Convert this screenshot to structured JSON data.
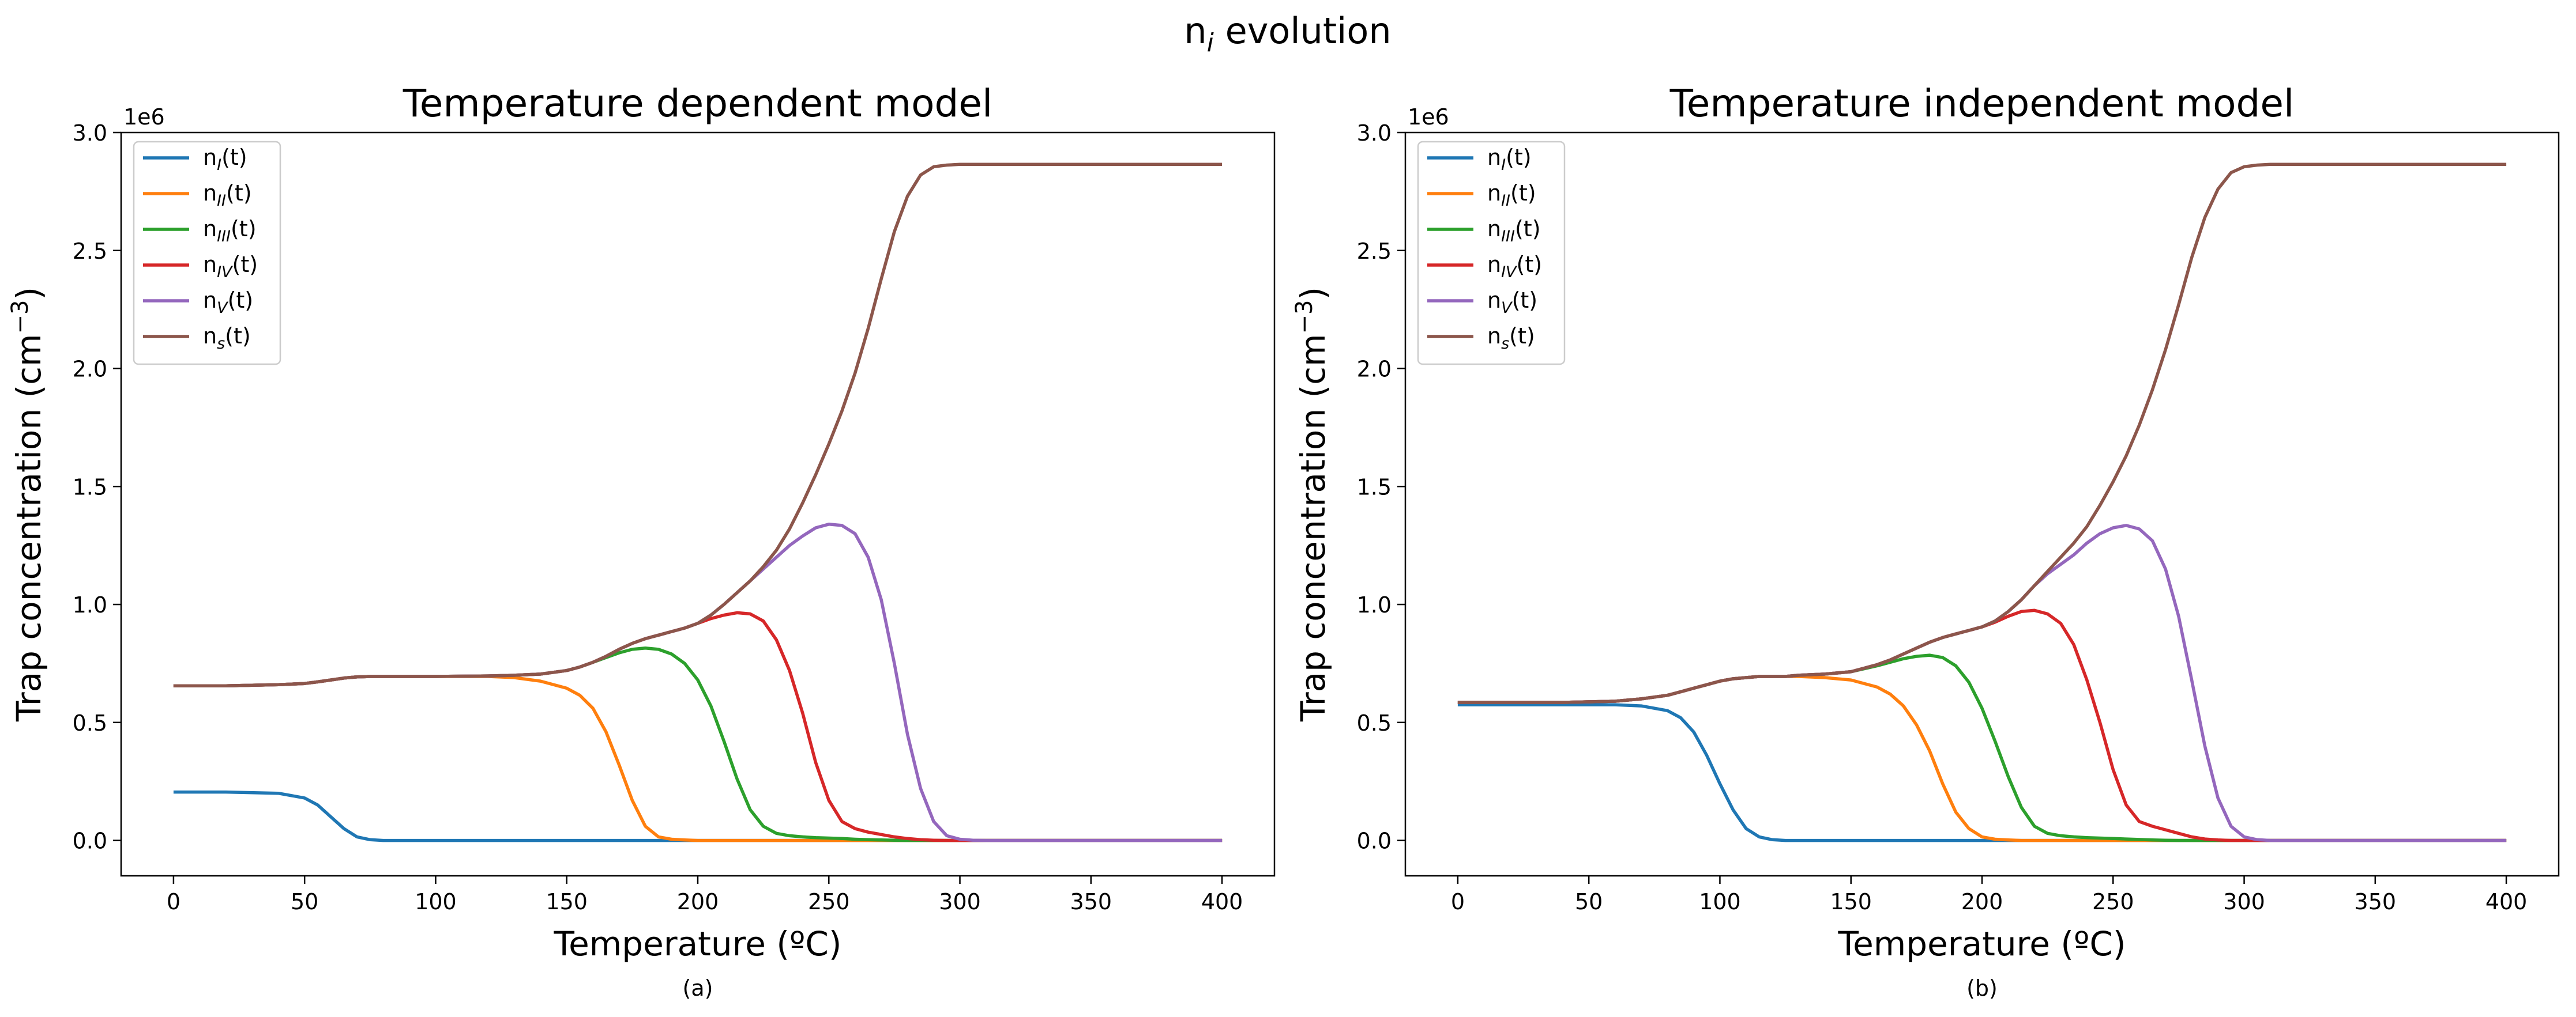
{
  "figure": {
    "suptitle": "n",
    "suptitle_sub": "i",
    "suptitle_rest": " evolution"
  },
  "chart_data": [
    {
      "type": "line",
      "title": "Temperature dependent model",
      "xlabel": "Temperature (ºC)",
      "ylabel": "Trap concentration (cm",
      "ylabel_sup": "−3",
      "ylabel_end": ")",
      "y_multiplier": "1e6",
      "caption": "(a)",
      "xlim": [
        -20,
        420
      ],
      "ylim": [
        -0.15,
        3.0
      ],
      "xticks": [
        0,
        50,
        100,
        150,
        200,
        250,
        300,
        350,
        400
      ],
      "yticks": [
        0.0,
        0.5,
        1.0,
        1.5,
        2.0,
        2.5,
        3.0
      ],
      "ytick_labels": [
        "0.0",
        "0.5",
        "1.0",
        "1.5",
        "2.0",
        "2.5",
        "3.0"
      ],
      "legend_loc": "upper left",
      "x": [
        0,
        20,
        40,
        50,
        55,
        60,
        65,
        70,
        75,
        80,
        100,
        120,
        130,
        140,
        150,
        155,
        160,
        165,
        170,
        175,
        180,
        185,
        190,
        195,
        200,
        205,
        210,
        215,
        220,
        225,
        230,
        235,
        240,
        245,
        250,
        255,
        260,
        265,
        270,
        275,
        280,
        285,
        290,
        295,
        300,
        305,
        310,
        320,
        340,
        360,
        400
      ],
      "series": [
        {
          "name": "I",
          "color": "#1f77b4",
          "values": [
            0.205,
            0.205,
            0.2,
            0.18,
            0.15,
            0.1,
            0.05,
            0.015,
            0.003,
            0.0,
            0.0,
            0.0,
            0.0,
            0.0,
            0.0,
            0.0,
            0.0,
            0.0,
            0.0,
            0.0,
            0.0,
            0.0,
            0.0,
            0.0,
            0.0,
            0.0,
            0.0,
            0.0,
            0.0,
            0.0,
            0.0,
            0.0,
            0.0,
            0.0,
            0.0,
            0.0,
            0.0,
            0.0,
            0.0,
            0.0,
            0.0,
            0.0,
            0.0,
            0.0,
            0.0,
            0.0,
            0.0,
            0.0,
            0.0,
            0.0,
            0.0
          ]
        },
        {
          "name": "II",
          "color": "#ff7f0e",
          "values": [
            0.655,
            0.655,
            0.66,
            0.665,
            0.672,
            0.68,
            0.688,
            0.693,
            0.695,
            0.695,
            0.695,
            0.695,
            0.69,
            0.675,
            0.645,
            0.615,
            0.56,
            0.46,
            0.32,
            0.17,
            0.06,
            0.015,
            0.005,
            0.002,
            0.0,
            0.0,
            0.0,
            0.0,
            0.0,
            0.0,
            0.0,
            0.0,
            0.0,
            0.0,
            0.0,
            0.0,
            0.0,
            0.0,
            0.0,
            0.0,
            0.0,
            0.0,
            0.0,
            0.0,
            0.0,
            0.0,
            0.0,
            0.0,
            0.0,
            0.0,
            0.0
          ]
        },
        {
          "name": "III",
          "color": "#2ca02c",
          "values": [
            0.655,
            0.655,
            0.66,
            0.665,
            0.672,
            0.68,
            0.688,
            0.693,
            0.695,
            0.695,
            0.695,
            0.697,
            0.7,
            0.705,
            0.72,
            0.735,
            0.755,
            0.775,
            0.795,
            0.81,
            0.815,
            0.81,
            0.79,
            0.75,
            0.68,
            0.57,
            0.42,
            0.26,
            0.13,
            0.06,
            0.03,
            0.02,
            0.015,
            0.012,
            0.01,
            0.008,
            0.005,
            0.003,
            0.002,
            0.001,
            0.0,
            0.0,
            0.0,
            0.0,
            0.0,
            0.0,
            0.0,
            0.0,
            0.0,
            0.0,
            0.0
          ]
        },
        {
          "name": "IV",
          "color": "#d62728",
          "values": [
            0.655,
            0.655,
            0.66,
            0.665,
            0.672,
            0.68,
            0.688,
            0.693,
            0.695,
            0.695,
            0.695,
            0.697,
            0.7,
            0.705,
            0.72,
            0.735,
            0.755,
            0.78,
            0.81,
            0.835,
            0.855,
            0.87,
            0.885,
            0.9,
            0.92,
            0.94,
            0.955,
            0.965,
            0.96,
            0.93,
            0.85,
            0.72,
            0.54,
            0.33,
            0.17,
            0.08,
            0.05,
            0.035,
            0.025,
            0.015,
            0.008,
            0.003,
            0.001,
            0.0,
            0.0,
            0.0,
            0.0,
            0.0,
            0.0,
            0.0,
            0.0
          ]
        },
        {
          "name": "V",
          "color": "#9467bd",
          "values": [
            0.655,
            0.655,
            0.66,
            0.665,
            0.672,
            0.68,
            0.688,
            0.693,
            0.695,
            0.695,
            0.695,
            0.697,
            0.7,
            0.705,
            0.72,
            0.735,
            0.755,
            0.78,
            0.81,
            0.835,
            0.855,
            0.87,
            0.885,
            0.9,
            0.92,
            0.955,
            1.0,
            1.05,
            1.1,
            1.15,
            1.2,
            1.25,
            1.29,
            1.325,
            1.34,
            1.335,
            1.3,
            1.2,
            1.02,
            0.75,
            0.45,
            0.22,
            0.08,
            0.02,
            0.005,
            0.001,
            0.0,
            0.0,
            0.0,
            0.0,
            0.0
          ]
        },
        {
          "name": "s",
          "color": "#8c564b",
          "values": [
            0.655,
            0.655,
            0.66,
            0.665,
            0.672,
            0.68,
            0.688,
            0.693,
            0.695,
            0.695,
            0.695,
            0.697,
            0.7,
            0.705,
            0.72,
            0.735,
            0.755,
            0.78,
            0.81,
            0.835,
            0.855,
            0.87,
            0.885,
            0.9,
            0.92,
            0.955,
            1.0,
            1.05,
            1.1,
            1.16,
            1.23,
            1.32,
            1.43,
            1.55,
            1.68,
            1.82,
            1.98,
            2.17,
            2.38,
            2.58,
            2.73,
            2.82,
            2.855,
            2.862,
            2.865,
            2.865,
            2.865,
            2.865,
            2.865,
            2.865,
            2.865
          ]
        }
      ]
    },
    {
      "type": "line",
      "title": "Temperature independent model",
      "xlabel": "Temperature (ºC)",
      "ylabel": "Trap concentration (cm",
      "ylabel_sup": "−3",
      "ylabel_end": ")",
      "y_multiplier": "1e6",
      "caption": "(b)",
      "xlim": [
        -20,
        420
      ],
      "ylim": [
        -0.15,
        3.0
      ],
      "xticks": [
        0,
        50,
        100,
        150,
        200,
        250,
        300,
        350,
        400
      ],
      "yticks": [
        0.0,
        0.5,
        1.0,
        1.5,
        2.0,
        2.5,
        3.0
      ],
      "ytick_labels": [
        "0.0",
        "0.5",
        "1.0",
        "1.5",
        "2.0",
        "2.5",
        "3.0"
      ],
      "legend_loc": "upper left",
      "x": [
        0,
        40,
        60,
        70,
        80,
        85,
        90,
        95,
        100,
        105,
        110,
        115,
        120,
        125,
        130,
        140,
        150,
        160,
        165,
        170,
        175,
        180,
        185,
        190,
        195,
        200,
        205,
        210,
        215,
        220,
        225,
        230,
        235,
        240,
        245,
        250,
        255,
        260,
        265,
        270,
        275,
        280,
        285,
        290,
        295,
        300,
        305,
        310,
        315,
        320,
        330,
        340,
        400
      ],
      "series": [
        {
          "name": "I",
          "color": "#1f77b4",
          "values": [
            0.575,
            0.575,
            0.575,
            0.57,
            0.55,
            0.52,
            0.46,
            0.36,
            0.24,
            0.13,
            0.05,
            0.015,
            0.003,
            0.0,
            0.0,
            0.0,
            0.0,
            0.0,
            0.0,
            0.0,
            0.0,
            0.0,
            0.0,
            0.0,
            0.0,
            0.0,
            0.0,
            0.0,
            0.0,
            0.0,
            0.0,
            0.0,
            0.0,
            0.0,
            0.0,
            0.0,
            0.0,
            0.0,
            0.0,
            0.0,
            0.0,
            0.0,
            0.0,
            0.0,
            0.0,
            0.0,
            0.0,
            0.0,
            0.0,
            0.0,
            0.0,
            0.0,
            0.0
          ]
        },
        {
          "name": "II",
          "color": "#ff7f0e",
          "values": [
            0.585,
            0.585,
            0.59,
            0.6,
            0.615,
            0.63,
            0.645,
            0.66,
            0.675,
            0.685,
            0.69,
            0.695,
            0.695,
            0.695,
            0.695,
            0.69,
            0.68,
            0.65,
            0.62,
            0.57,
            0.49,
            0.38,
            0.24,
            0.12,
            0.05,
            0.015,
            0.005,
            0.002,
            0.0,
            0.0,
            0.0,
            0.0,
            0.0,
            0.0,
            0.0,
            0.0,
            0.0,
            0.0,
            0.0,
            0.0,
            0.0,
            0.0,
            0.0,
            0.0,
            0.0,
            0.0,
            0.0,
            0.0,
            0.0,
            0.0,
            0.0,
            0.0,
            0.0
          ]
        },
        {
          "name": "III",
          "color": "#2ca02c",
          "values": [
            0.585,
            0.585,
            0.59,
            0.6,
            0.615,
            0.63,
            0.645,
            0.66,
            0.675,
            0.685,
            0.69,
            0.695,
            0.695,
            0.695,
            0.7,
            0.705,
            0.715,
            0.74,
            0.755,
            0.77,
            0.78,
            0.785,
            0.775,
            0.74,
            0.67,
            0.56,
            0.42,
            0.27,
            0.14,
            0.06,
            0.03,
            0.02,
            0.015,
            0.012,
            0.01,
            0.008,
            0.006,
            0.004,
            0.002,
            0.001,
            0.0,
            0.0,
            0.0,
            0.0,
            0.0,
            0.0,
            0.0,
            0.0,
            0.0,
            0.0,
            0.0,
            0.0,
            0.0
          ]
        },
        {
          "name": "IV",
          "color": "#d62728",
          "values": [
            0.585,
            0.585,
            0.59,
            0.6,
            0.615,
            0.63,
            0.645,
            0.66,
            0.675,
            0.685,
            0.69,
            0.695,
            0.695,
            0.695,
            0.7,
            0.705,
            0.715,
            0.745,
            0.765,
            0.79,
            0.815,
            0.84,
            0.86,
            0.875,
            0.89,
            0.905,
            0.925,
            0.95,
            0.97,
            0.975,
            0.96,
            0.92,
            0.83,
            0.68,
            0.5,
            0.3,
            0.15,
            0.08,
            0.06,
            0.045,
            0.03,
            0.015,
            0.006,
            0.002,
            0.0,
            0.0,
            0.0,
            0.0,
            0.0,
            0.0,
            0.0,
            0.0,
            0.0
          ]
        },
        {
          "name": "V",
          "color": "#9467bd",
          "values": [
            0.585,
            0.585,
            0.59,
            0.6,
            0.615,
            0.63,
            0.645,
            0.66,
            0.675,
            0.685,
            0.69,
            0.695,
            0.695,
            0.695,
            0.7,
            0.705,
            0.715,
            0.745,
            0.765,
            0.79,
            0.815,
            0.84,
            0.86,
            0.875,
            0.89,
            0.905,
            0.93,
            0.97,
            1.02,
            1.08,
            1.13,
            1.17,
            1.21,
            1.26,
            1.3,
            1.325,
            1.335,
            1.32,
            1.27,
            1.15,
            0.95,
            0.68,
            0.4,
            0.18,
            0.06,
            0.015,
            0.003,
            0.0,
            0.0,
            0.0,
            0.0,
            0.0,
            0.0
          ]
        },
        {
          "name": "s",
          "color": "#8c564b",
          "values": [
            0.585,
            0.585,
            0.59,
            0.6,
            0.615,
            0.63,
            0.645,
            0.66,
            0.675,
            0.685,
            0.69,
            0.695,
            0.695,
            0.695,
            0.7,
            0.705,
            0.715,
            0.745,
            0.765,
            0.79,
            0.815,
            0.84,
            0.86,
            0.875,
            0.89,
            0.905,
            0.93,
            0.97,
            1.02,
            1.08,
            1.14,
            1.2,
            1.26,
            1.33,
            1.42,
            1.52,
            1.63,
            1.76,
            1.91,
            2.08,
            2.27,
            2.47,
            2.64,
            2.76,
            2.83,
            2.855,
            2.862,
            2.865,
            2.865,
            2.865,
            2.865,
            2.865,
            2.865
          ]
        }
      ]
    }
  ]
}
